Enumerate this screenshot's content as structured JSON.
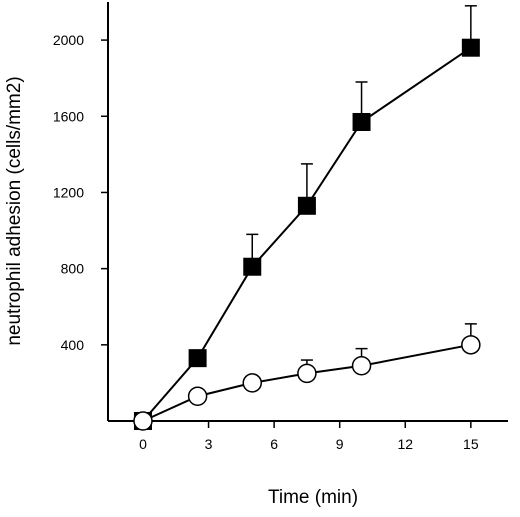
{
  "chart_data": {
    "type": "line",
    "title": "",
    "xlabel": "Time (min)",
    "ylabel": "neutrophil adhesion (cells/mm2)",
    "xlim": [
      -1.6,
      16.7
    ],
    "ylim": [
      0,
      2200
    ],
    "xticks": [
      0,
      3,
      6,
      9,
      12,
      15
    ],
    "yticks": [
      400,
      800,
      1200,
      1600,
      2000
    ],
    "legend": "none",
    "grid": false,
    "series": [
      {
        "marker": "filled-square",
        "color": "#000000",
        "x": [
          0,
          2.5,
          5,
          7.5,
          10,
          15
        ],
        "y": [
          0,
          330,
          810,
          1130,
          1570,
          1960
        ],
        "error_upper": [
          0,
          0,
          170,
          220,
          210,
          220
        ]
      },
      {
        "marker": "open-circle",
        "color": "#000000",
        "x": [
          0,
          2.5,
          5,
          7.5,
          10,
          15
        ],
        "y": [
          0,
          130,
          200,
          250,
          290,
          400
        ],
        "error_upper": [
          0,
          0,
          0,
          70,
          90,
          110
        ]
      }
    ]
  }
}
